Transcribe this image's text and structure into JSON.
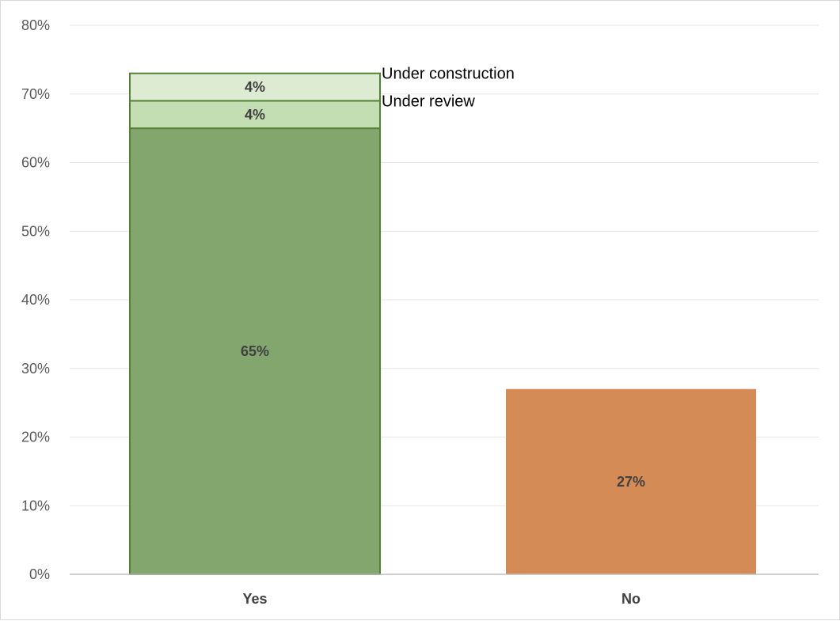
{
  "chart_data": {
    "type": "bar",
    "stacked": true,
    "categories": [
      "Yes",
      "No"
    ],
    "ylim": [
      0,
      80
    ],
    "ytick_values": [
      0,
      10,
      20,
      30,
      40,
      50,
      60,
      70,
      80
    ],
    "ytick_labels": [
      "0%",
      "10%",
      "20%",
      "30%",
      "40%",
      "50%",
      "60%",
      "70%",
      "80%"
    ],
    "grid": true,
    "legend": "none",
    "series": [
      {
        "values": [
          65,
          27
        ],
        "labels": [
          "65%",
          "27%"
        ],
        "colors": [
          "#83a66f",
          "#d58b55"
        ],
        "border": "#548235"
      },
      {
        "name": "Under review",
        "values": [
          4,
          0
        ],
        "labels": [
          "4%",
          ""
        ],
        "colors": [
          "#c4deb3",
          "#c4deb3"
        ],
        "border": "#548235"
      },
      {
        "name": "Under construction",
        "values": [
          4,
          0
        ],
        "labels": [
          "4%",
          ""
        ],
        "colors": [
          "#deebd3",
          "#deebd3"
        ],
        "border": "#548235"
      }
    ],
    "colors": {
      "grid": "#e5e5e5",
      "axis": "#bfbfbf"
    }
  }
}
